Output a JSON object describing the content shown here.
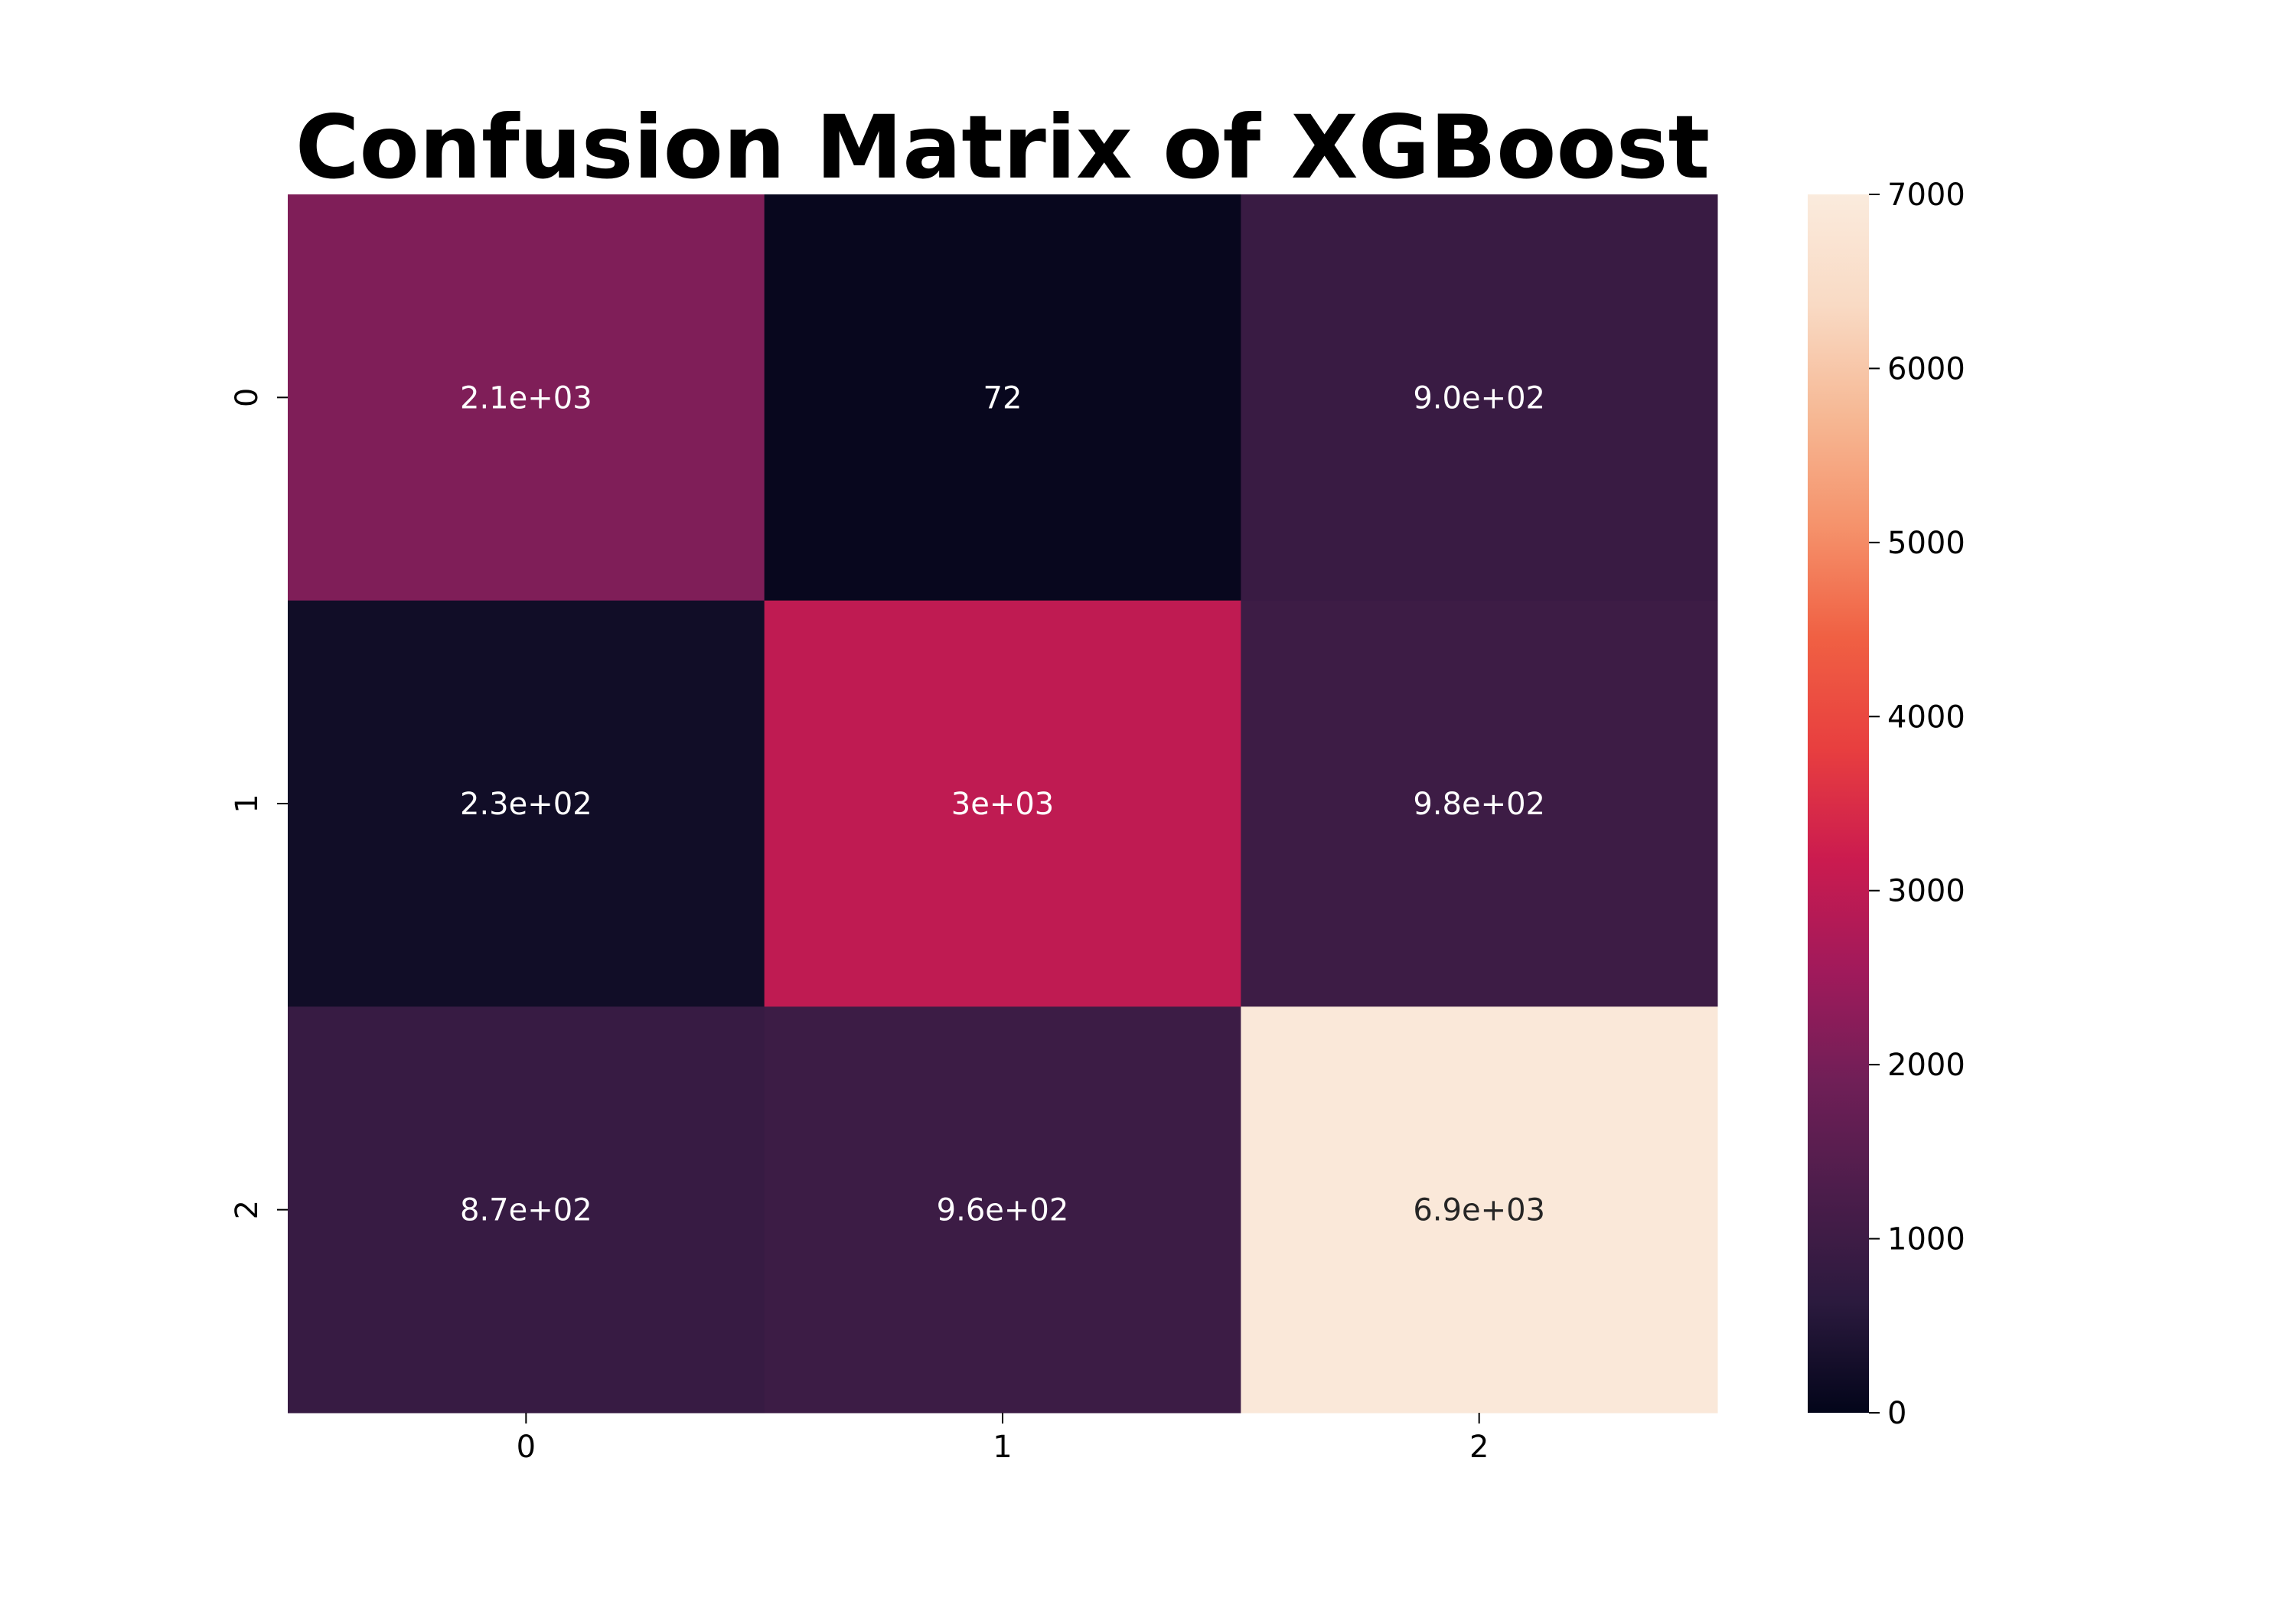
{
  "chart_data": {
    "type": "heatmap",
    "title": "Confusion Matrix of XGBoost",
    "xlabel": "",
    "ylabel": "",
    "x_categories": [
      "0",
      "1",
      "2"
    ],
    "y_categories": [
      "0",
      "1",
      "2"
    ],
    "values": [
      [
        2100,
        72,
        900
      ],
      [
        230,
        3000,
        980
      ],
      [
        870,
        960,
        6900
      ]
    ],
    "cell_labels": [
      [
        "2.1e+03",
        "72",
        "9.0e+02"
      ],
      [
        "2.3e+02",
        "3e+03",
        "9.8e+02"
      ],
      [
        "8.7e+02",
        "9.6e+02",
        "6.9e+03"
      ]
    ],
    "colorbar": {
      "range": [
        0,
        7000
      ],
      "ticks": [
        0,
        1000,
        2000,
        3000,
        4000,
        5000,
        6000,
        7000
      ],
      "colormap": "rocket"
    },
    "colors": {
      "scale_stops": [
        "#03051a",
        "#2b1a3e",
        "#4c1d4b",
        "#701f57",
        "#a11a5b",
        "#cb1b4f",
        "#e83f3f",
        "#f06043",
        "#f5926b",
        "#f6b894",
        "#f9dac4",
        "#faebdd"
      ],
      "label_dark_bg": "#ffffff",
      "label_light_bg": "#262626"
    }
  }
}
